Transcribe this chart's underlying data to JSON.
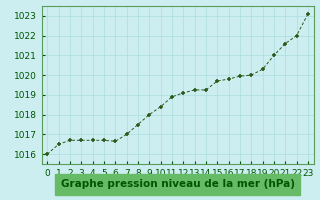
{
  "x": [
    0,
    1,
    2,
    3,
    4,
    5,
    6,
    7,
    8,
    9,
    10,
    11,
    12,
    13,
    14,
    15,
    16,
    17,
    18,
    19,
    20,
    21,
    22,
    23
  ],
  "y": [
    1016.0,
    1016.5,
    1016.7,
    1016.7,
    1016.7,
    1016.7,
    1016.65,
    1017.0,
    1017.5,
    1018.0,
    1018.4,
    1018.9,
    1019.1,
    1019.25,
    1019.25,
    1019.7,
    1019.8,
    1019.95,
    1020.0,
    1020.3,
    1021.0,
    1021.6,
    1022.0,
    1023.1
  ],
  "ylim": [
    1015.5,
    1023.5
  ],
  "yticks": [
    1016,
    1017,
    1018,
    1019,
    1020,
    1021,
    1022,
    1023
  ],
  "xlim": [
    -0.5,
    23.5
  ],
  "xticks": [
    0,
    1,
    2,
    3,
    4,
    5,
    6,
    7,
    8,
    9,
    10,
    11,
    12,
    13,
    14,
    15,
    16,
    17,
    18,
    19,
    20,
    21,
    22,
    23
  ],
  "xlabel": "Graphe pression niveau de la mer (hPa)",
  "line_color": "#2d5a1b",
  "marker": "+",
  "bg_color": "#cceef0",
  "grid_color": "#aadddd",
  "border_color": "#5a9a5a",
  "xlabel_color": "#005500",
  "xlabel_bg": "#66bb66",
  "tick_color": "#005500",
  "xlabel_fontsize": 7.5,
  "tick_fontsize": 6.5
}
